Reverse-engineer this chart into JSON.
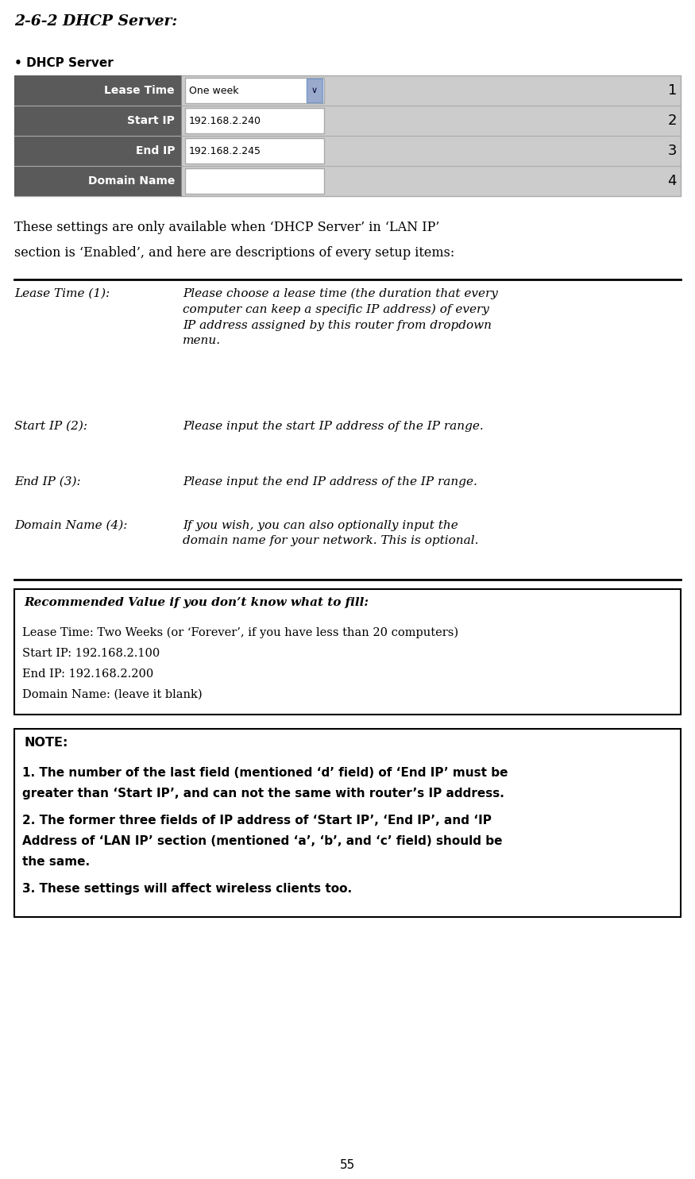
{
  "title": "2-6-2 DHCP Server:",
  "bg_color": "#ffffff",
  "page_number": "55",
  "dhcp_section": {
    "bullet_text": "DHCP Server",
    "table_rows": [
      {
        "label": "Lease Time",
        "value": "One week",
        "has_dropdown": true,
        "number": "1"
      },
      {
        "label": "Start IP",
        "value": "192.168.2.240",
        "has_dropdown": false,
        "number": "2"
      },
      {
        "label": "End IP",
        "value": "192.168.2.245",
        "has_dropdown": false,
        "number": "3"
      },
      {
        "label": "Domain Name",
        "value": "",
        "has_dropdown": false,
        "number": "4"
      }
    ],
    "label_bg": "#5a5a5a",
    "label_fg": "#ffffff",
    "table_bg": "#cccccc",
    "input_bg": "#ffffff",
    "input_border": "#aaaaaa",
    "number_color": "#000000"
  },
  "intro_text1": "These settings are only available when ‘DHCP Server’ in ‘LAN IP’",
  "intro_text2": "section is ‘Enabled’, and here are descriptions of every setup items:",
  "description_rows": [
    {
      "label": "Lease Time (1):",
      "desc": "Please choose a lease time (the duration that every\ncomputer can keep a specific IP address) of every\nIP address assigned by this router from dropdown\nmenu."
    },
    {
      "label": "Start IP (2):",
      "desc": "Please input the start IP address of the IP range."
    },
    {
      "label": "End IP (3):",
      "desc": "Please input the end IP address of the IP range."
    },
    {
      "label": "Domain Name (4):",
      "desc": "If you wish, you can also optionally input the\ndomain name for your network. This is optional."
    }
  ],
  "recommended_box": {
    "title": "Recommended Value if you don’t know what to fill:",
    "lines": [
      "Lease Time: Two Weeks (or ‘Forever’, if you have less than 20 computers)",
      "Start IP: 192.168.2.100",
      "End IP: 192.168.2.200",
      "Domain Name: (leave it blank)"
    ],
    "border_color": "#000000",
    "bg_color": "#ffffff"
  },
  "note_box": {
    "title": "NOTE:",
    "line1": "1. The number of the last field (mentioned ‘d’ field) of ‘End IP’ must be",
    "line1b": "greater than ‘Start IP’, and can not the same with router’s IP address.",
    "line2": "2. The former three fields of IP address of ‘Start IP’, ‘End IP’, and ‘IP",
    "line2b": "Address of ‘LAN IP’ section (mentioned ‘a’, ‘b’, and ‘c’ field) should be",
    "line2c": "the same.",
    "line3": "3. These settings will affect wireless clients too.",
    "border_color": "#000000",
    "bg_color": "#ffffff"
  }
}
